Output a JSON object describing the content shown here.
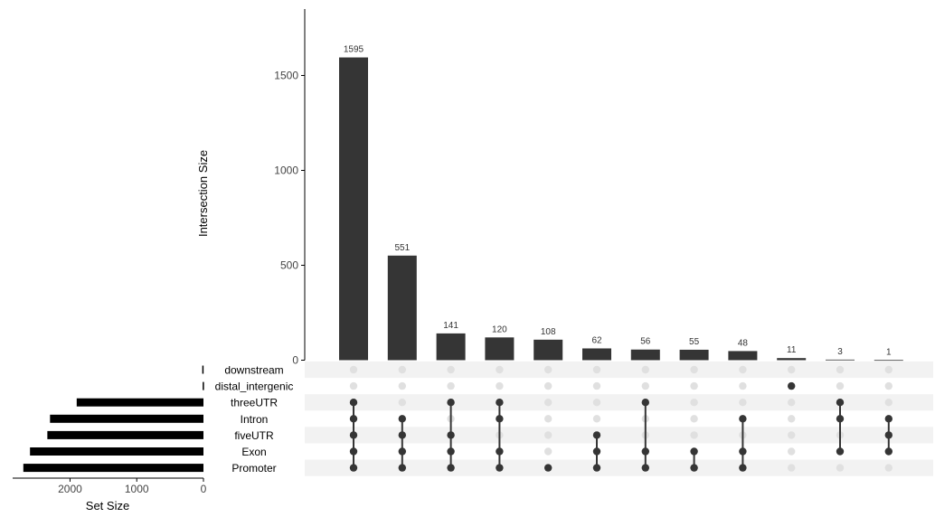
{
  "chart_data": {
    "type": "upset",
    "bar_color": "#353535",
    "set_bar_color": "#000000",
    "dot_active_color": "#353535",
    "dot_inactive_color": "#e0e0e0",
    "stripe_color": "#f2f2f2",
    "intersection_axis": {
      "label": "Intersection Size",
      "ylim": [
        0,
        1850
      ],
      "ticks": [
        0,
        500,
        1000,
        1500
      ]
    },
    "set_size_axis": {
      "label": "Set Size",
      "xlim": [
        0,
        2860
      ],
      "ticks": [
        0,
        1000,
        2000
      ]
    },
    "sets": [
      {
        "name": "downstream",
        "size": 18
      },
      {
        "name": "distal_intergenic",
        "size": 12
      },
      {
        "name": "threeUTR",
        "size": 1900
      },
      {
        "name": "Intron",
        "size": 2300
      },
      {
        "name": "fiveUTR",
        "size": 2340
      },
      {
        "name": "Exon",
        "size": 2600
      },
      {
        "name": "Promoter",
        "size": 2700
      }
    ],
    "intersections": [
      {
        "value": 1595,
        "label": "1595",
        "sets": [
          "threeUTR",
          "Intron",
          "fiveUTR",
          "Exon",
          "Promoter"
        ]
      },
      {
        "value": 551,
        "label": "551",
        "sets": [
          "Intron",
          "fiveUTR",
          "Exon",
          "Promoter"
        ]
      },
      {
        "value": 141,
        "label": "141",
        "sets": [
          "threeUTR",
          "fiveUTR",
          "Exon",
          "Promoter"
        ]
      },
      {
        "value": 120,
        "label": "120",
        "sets": [
          "threeUTR",
          "Intron",
          "Exon",
          "Promoter"
        ]
      },
      {
        "value": 108,
        "label": "108",
        "sets": [
          "Promoter"
        ]
      },
      {
        "value": 62,
        "label": "62",
        "sets": [
          "fiveUTR",
          "Exon",
          "Promoter"
        ]
      },
      {
        "value": 56,
        "label": "56",
        "sets": [
          "threeUTR",
          "Exon",
          "Promoter"
        ]
      },
      {
        "value": 55,
        "label": "55",
        "sets": [
          "Exon",
          "Promoter"
        ]
      },
      {
        "value": 48,
        "label": "48",
        "sets": [
          "Intron",
          "Exon",
          "Promoter"
        ]
      },
      {
        "value": 11,
        "label": "11",
        "sets": [
          "distal_intergenic"
        ]
      },
      {
        "value": 3,
        "label": "3",
        "sets": [
          "threeUTR",
          "Intron",
          "Exon"
        ]
      },
      {
        "value": 1,
        "label": "1",
        "sets": [
          "Intron",
          "fiveUTR",
          "Exon"
        ]
      }
    ]
  }
}
